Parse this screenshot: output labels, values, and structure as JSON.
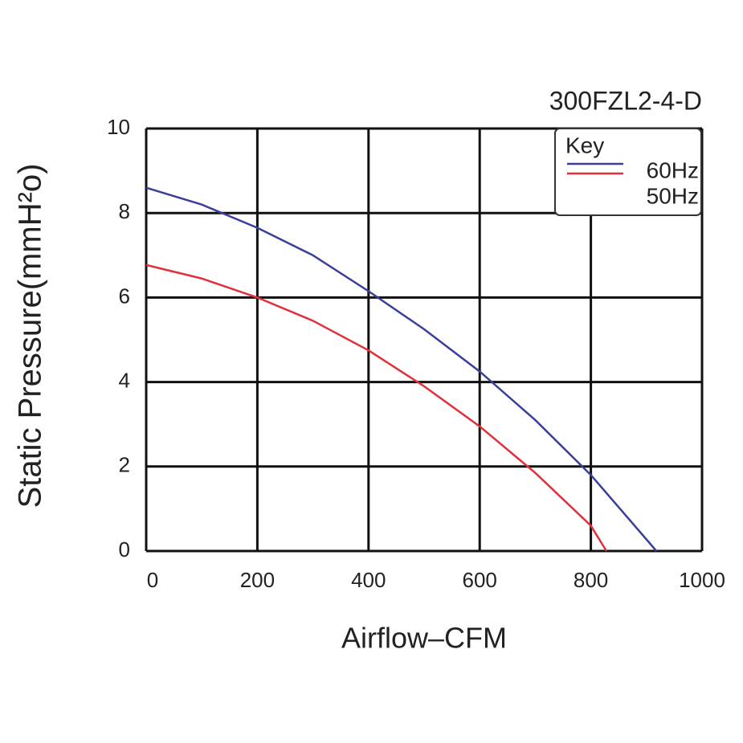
{
  "chart_data": {
    "type": "line",
    "title": "300FZL2-4-D",
    "x_label": "Airflow–CFM",
    "y_label": "Static Pressure(mmH²o)",
    "legend_title": "Key",
    "legend_position": "upper right",
    "grid": true,
    "xlim": [
      0,
      1000
    ],
    "xticks": [
      0,
      200,
      400,
      600,
      800,
      1000
    ],
    "ylim": [
      0,
      10
    ],
    "yticks": [
      0,
      2,
      4,
      6,
      8,
      10
    ],
    "series": [
      {
        "name": "60Hz",
        "color": "#3a3f9a",
        "x": [
          0,
          100,
          200,
          300,
          400,
          500,
          600,
          700,
          800,
          918
        ],
        "values": [
          8.6,
          8.2,
          7.65,
          7.0,
          6.15,
          5.25,
          4.25,
          3.1,
          1.8,
          0
        ]
      },
      {
        "name": "50Hz",
        "color": "#e0303a",
        "x": [
          0,
          100,
          200,
          300,
          400,
          500,
          600,
          700,
          800,
          828
        ],
        "values": [
          6.77,
          6.45,
          6.0,
          5.45,
          4.75,
          3.9,
          2.95,
          1.85,
          0.6,
          0
        ]
      }
    ]
  }
}
